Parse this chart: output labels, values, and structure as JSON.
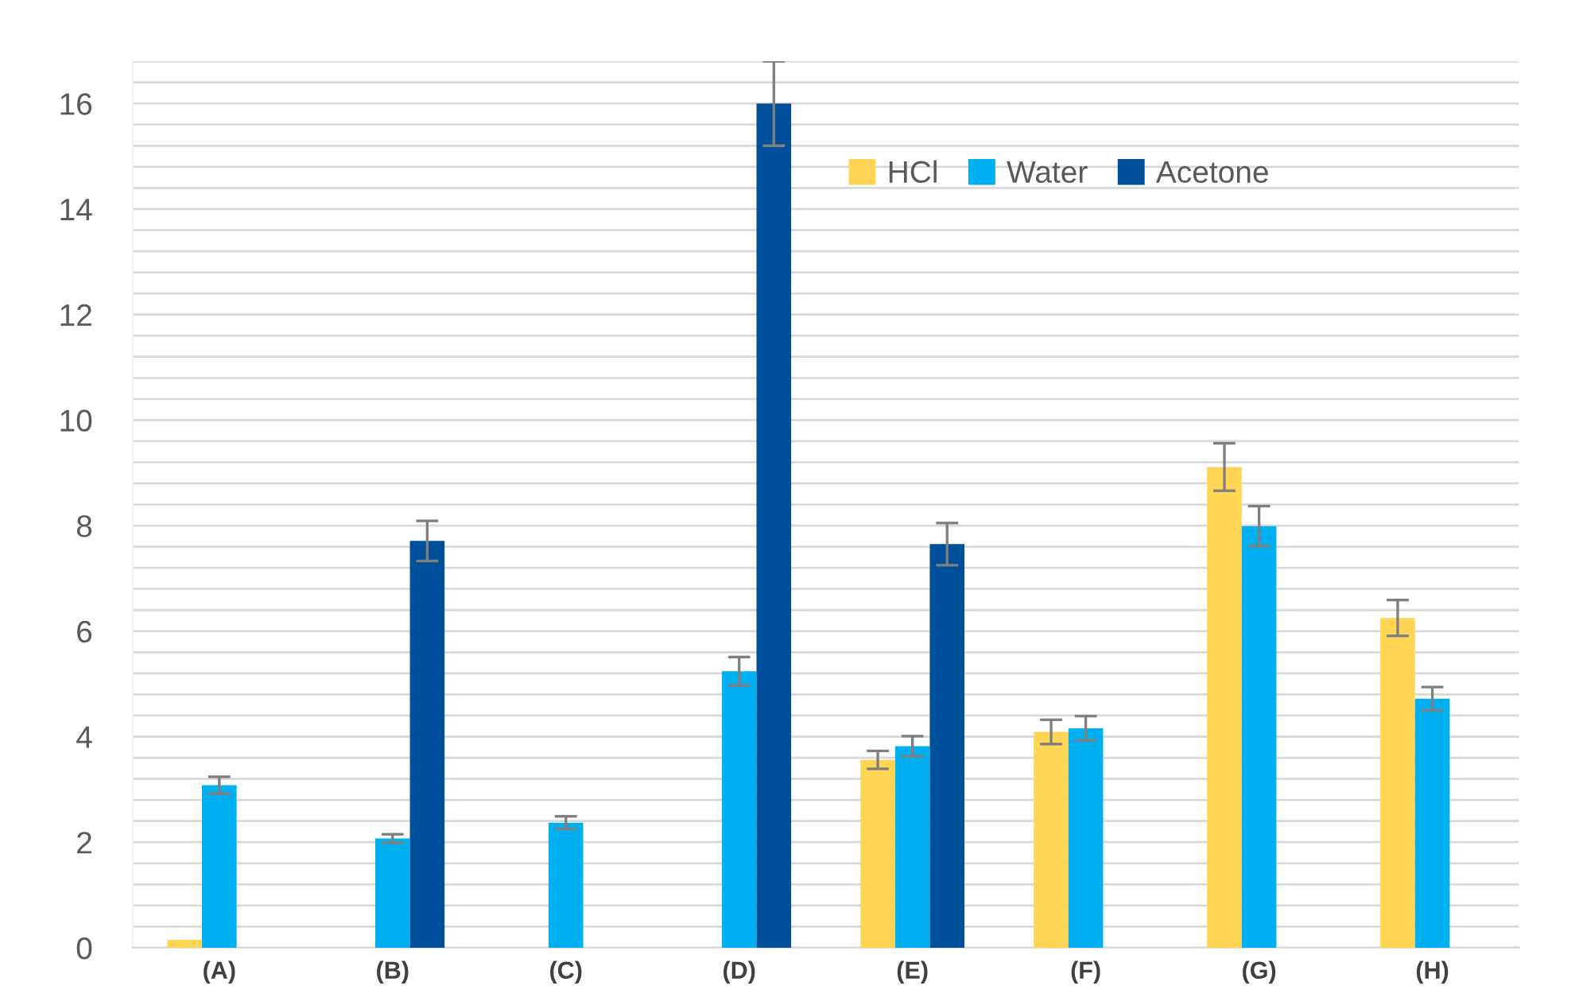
{
  "chart_data": {
    "type": "bar",
    "categories": [
      "(A)",
      "(B)",
      "(C)",
      "(D)",
      "(E)",
      "(F)",
      "(G)",
      "(H)"
    ],
    "series": [
      {
        "name": "HCl",
        "color": "#ffd555",
        "values": [
          0.15,
          null,
          null,
          null,
          3.56,
          4.09,
          9.11,
          6.25
        ],
        "errors": [
          null,
          null,
          null,
          null,
          0.17,
          0.23,
          0.45,
          0.34
        ]
      },
      {
        "name": "Water",
        "color": "#00b0f0",
        "values": [
          3.08,
          2.07,
          2.37,
          5.24,
          3.82,
          4.16,
          7.99,
          4.72
        ],
        "errors": [
          0.16,
          0.08,
          0.12,
          0.27,
          0.19,
          0.23,
          0.38,
          0.22
        ]
      },
      {
        "name": "Acetone",
        "color": "#004f9a",
        "values": [
          null,
          7.71,
          null,
          16.0,
          7.65,
          null,
          null,
          null
        ],
        "errors": [
          null,
          0.38,
          null,
          0.8,
          0.4,
          null,
          null,
          null
        ]
      }
    ],
    "ylim": [
      0,
      16.8
    ],
    "yticks": [
      0,
      {
        "value": 0.4,
        "label": null
      },
      {
        "value": 0.8,
        "label": null
      },
      {
        "value": 1.2,
        "label": null
      },
      {
        "value": 1.6,
        "label": null
      },
      2,
      {
        "value": 2.4,
        "label": null
      },
      {
        "value": 2.8,
        "label": null
      },
      {
        "value": 3.2,
        "label": null
      },
      {
        "value": 3.6,
        "label": null
      },
      4,
      {
        "value": 4.4,
        "label": null
      },
      {
        "value": 4.8,
        "label": null
      },
      {
        "value": 5.2,
        "label": null
      },
      {
        "value": 5.6,
        "label": null
      },
      6,
      {
        "value": 6.4,
        "label": null
      },
      {
        "value": 6.8,
        "label": null
      },
      {
        "value": 7.2,
        "label": null
      },
      {
        "value": 7.6,
        "label": null
      },
      8,
      {
        "value": 8.4,
        "label": null
      },
      {
        "value": 8.8,
        "label": null
      },
      {
        "value": 9.2,
        "label": null
      },
      {
        "value": 9.6,
        "label": null
      },
      10,
      {
        "value": 10.4,
        "label": null
      },
      {
        "value": 10.8,
        "label": null
      },
      {
        "value": 11.2,
        "label": null
      },
      {
        "value": 11.6,
        "label": null
      },
      12,
      {
        "value": 12.4,
        "label": null
      },
      {
        "value": 12.8,
        "label": null
      },
      {
        "value": 13.2,
        "label": null
      },
      {
        "value": 13.6,
        "label": null
      },
      14,
      {
        "value": 14.4,
        "label": null
      },
      {
        "value": 14.8,
        "label": null
      },
      {
        "value": 15.2,
        "label": null
      },
      {
        "value": 15.6,
        "label": null
      },
      16,
      {
        "value": 16.4,
        "label": null
      },
      {
        "value": 16.8,
        "label": null
      }
    ],
    "grid": "y",
    "legend": "top right"
  }
}
